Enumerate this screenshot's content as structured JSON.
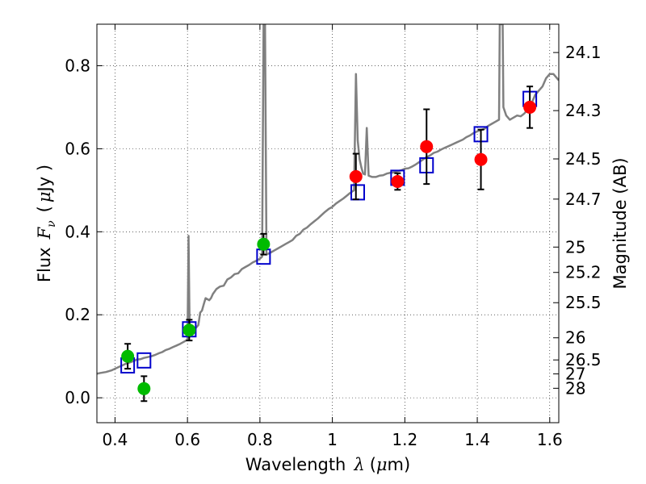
{
  "chart_data": {
    "type": "scatter",
    "xlabel": "Wavelength",
    "xlabel_symbol": "λ",
    "xlabel_unit_open": "(",
    "xlabel_unit_mu": "μ",
    "xlabel_unit_rest": "m)",
    "ylabel": "Flux",
    "ylabel_symbol": "F",
    "ylabel_sub": "ν",
    "ylabel_unit_open": "(",
    "ylabel_unit_mu": "μ",
    "ylabel_unit_rest": "Jy )",
    "y2label": "Magnitude (AB)",
    "xlim": [
      0.35,
      1.625
    ],
    "ylim": [
      -0.06,
      0.9
    ],
    "grid": true,
    "xticks": [
      {
        "v": 0.4,
        "label": "0.4"
      },
      {
        "v": 0.6,
        "label": "0.6"
      },
      {
        "v": 0.8,
        "label": "0.8"
      },
      {
        "v": 1.0,
        "label": "1"
      },
      {
        "v": 1.2,
        "label": "1.2"
      },
      {
        "v": 1.4,
        "label": "1.4"
      },
      {
        "v": 1.6,
        "label": "1.6"
      }
    ],
    "yticks": [
      {
        "v": 0.0,
        "label": "0.0"
      },
      {
        "v": 0.2,
        "label": "0.2"
      },
      {
        "v": 0.4,
        "label": "0.4"
      },
      {
        "v": 0.6,
        "label": "0.6"
      },
      {
        "v": 0.8,
        "label": "0.8"
      }
    ],
    "mag_ticks": [
      {
        "v": 24.1,
        "label": "24.1"
      },
      {
        "v": 24.3,
        "label": "24.3"
      },
      {
        "v": 24.5,
        "label": "24.5"
      },
      {
        "v": 24.7,
        "label": "24.7"
      },
      {
        "v": 25,
        "label": "25"
      },
      {
        "v": 25.2,
        "label": "25.2"
      },
      {
        "v": 25.5,
        "label": "25.5"
      },
      {
        "v": 26,
        "label": "26"
      },
      {
        "v": 26.5,
        "label": "26.5"
      },
      {
        "v": 27,
        "label": "27"
      },
      {
        "v": 28,
        "label": "28"
      }
    ],
    "series": [
      {
        "name": "model-spectrum",
        "kind": "line",
        "color": "#808080",
        "points": [
          [
            0.35,
            0.058
          ],
          [
            0.36,
            0.06
          ],
          [
            0.375,
            0.062
          ],
          [
            0.39,
            0.066
          ],
          [
            0.4,
            0.07
          ],
          [
            0.41,
            0.074
          ],
          [
            0.42,
            0.078
          ],
          [
            0.43,
            0.082
          ],
          [
            0.44,
            0.085
          ],
          [
            0.45,
            0.088
          ],
          [
            0.46,
            0.092
          ],
          [
            0.47,
            0.093
          ],
          [
            0.48,
            0.096
          ],
          [
            0.49,
            0.098
          ],
          [
            0.5,
            0.1
          ],
          [
            0.51,
            0.103
          ],
          [
            0.52,
            0.107
          ],
          [
            0.53,
            0.11
          ],
          [
            0.54,
            0.115
          ],
          [
            0.55,
            0.118
          ],
          [
            0.56,
            0.122
          ],
          [
            0.57,
            0.126
          ],
          [
            0.58,
            0.13
          ],
          [
            0.59,
            0.135
          ],
          [
            0.6,
            0.14
          ],
          [
            0.603,
            0.39
          ],
          [
            0.606,
            0.17
          ],
          [
            0.61,
            0.155
          ],
          [
            0.62,
            0.165
          ],
          [
            0.63,
            0.175
          ],
          [
            0.635,
            0.205
          ],
          [
            0.64,
            0.21
          ],
          [
            0.645,
            0.225
          ],
          [
            0.65,
            0.24
          ],
          [
            0.66,
            0.235
          ],
          [
            0.665,
            0.24
          ],
          [
            0.67,
            0.25
          ],
          [
            0.68,
            0.262
          ],
          [
            0.69,
            0.268
          ],
          [
            0.7,
            0.27
          ],
          [
            0.71,
            0.285
          ],
          [
            0.72,
            0.29
          ],
          [
            0.73,
            0.298
          ],
          [
            0.74,
            0.3
          ],
          [
            0.75,
            0.31
          ],
          [
            0.76,
            0.315
          ],
          [
            0.77,
            0.32
          ],
          [
            0.78,
            0.326
          ],
          [
            0.79,
            0.33
          ],
          [
            0.8,
            0.335
          ],
          [
            0.806,
            0.34
          ],
          [
            0.81,
            0.9
          ],
          [
            0.814,
            0.9
          ],
          [
            0.818,
            0.345
          ],
          [
            0.83,
            0.35
          ],
          [
            0.84,
            0.355
          ],
          [
            0.85,
            0.36
          ],
          [
            0.86,
            0.365
          ],
          [
            0.87,
            0.37
          ],
          [
            0.88,
            0.375
          ],
          [
            0.89,
            0.38
          ],
          [
            0.9,
            0.39
          ],
          [
            0.91,
            0.395
          ],
          [
            0.92,
            0.405
          ],
          [
            0.93,
            0.41
          ],
          [
            0.94,
            0.418
          ],
          [
            0.95,
            0.425
          ],
          [
            0.96,
            0.432
          ],
          [
            0.97,
            0.44
          ],
          [
            0.98,
            0.448
          ],
          [
            0.99,
            0.455
          ],
          [
            1.0,
            0.46
          ],
          [
            1.01,
            0.468
          ],
          [
            1.02,
            0.474
          ],
          [
            1.03,
            0.48
          ],
          [
            1.04,
            0.487
          ],
          [
            1.05,
            0.494
          ],
          [
            1.06,
            0.5
          ],
          [
            1.065,
            0.78
          ],
          [
            1.07,
            0.62
          ],
          [
            1.075,
            0.575
          ],
          [
            1.08,
            0.555
          ],
          [
            1.085,
            0.54
          ],
          [
            1.09,
            0.538
          ],
          [
            1.095,
            0.65
          ],
          [
            1.1,
            0.535
          ],
          [
            1.11,
            0.532
          ],
          [
            1.12,
            0.532
          ],
          [
            1.13,
            0.535
          ],
          [
            1.14,
            0.536
          ],
          [
            1.15,
            0.54
          ],
          [
            1.16,
            0.542
          ],
          [
            1.17,
            0.543
          ],
          [
            1.18,
            0.546
          ],
          [
            1.19,
            0.548
          ],
          [
            1.2,
            0.552
          ],
          [
            1.21,
            0.553
          ],
          [
            1.22,
            0.557
          ],
          [
            1.23,
            0.562
          ],
          [
            1.24,
            0.568
          ],
          [
            1.25,
            0.574
          ],
          [
            1.26,
            0.58
          ],
          [
            1.27,
            0.584
          ],
          [
            1.28,
            0.59
          ],
          [
            1.29,
            0.593
          ],
          [
            1.3,
            0.598
          ],
          [
            1.31,
            0.602
          ],
          [
            1.32,
            0.606
          ],
          [
            1.33,
            0.61
          ],
          [
            1.34,
            0.614
          ],
          [
            1.35,
            0.618
          ],
          [
            1.36,
            0.622
          ],
          [
            1.37,
            0.628
          ],
          [
            1.38,
            0.632
          ],
          [
            1.39,
            0.638
          ],
          [
            1.4,
            0.642
          ],
          [
            1.41,
            0.645
          ],
          [
            1.42,
            0.648
          ],
          [
            1.43,
            0.655
          ],
          [
            1.44,
            0.66
          ],
          [
            1.45,
            0.665
          ],
          [
            1.46,
            0.67
          ],
          [
            1.462,
            0.9
          ],
          [
            1.47,
            0.9
          ],
          [
            1.472,
            0.7
          ],
          [
            1.48,
            0.68
          ],
          [
            1.49,
            0.67
          ],
          [
            1.5,
            0.675
          ],
          [
            1.51,
            0.68
          ],
          [
            1.52,
            0.678
          ],
          [
            1.53,
            0.685
          ],
          [
            1.54,
            0.695
          ],
          [
            1.55,
            0.71
          ],
          [
            1.56,
            0.73
          ],
          [
            1.57,
            0.74
          ],
          [
            1.58,
            0.75
          ],
          [
            1.59,
            0.77
          ],
          [
            1.6,
            0.78
          ],
          [
            1.61,
            0.78
          ],
          [
            1.625,
            0.765
          ]
        ]
      },
      {
        "name": "model-fluxes",
        "kind": "open-square",
        "color": "#0000cc",
        "points": [
          [
            0.435,
            0.078
          ],
          [
            0.48,
            0.09
          ],
          [
            0.605,
            0.165
          ],
          [
            0.81,
            0.34
          ],
          [
            1.07,
            0.495
          ],
          [
            1.18,
            0.53
          ],
          [
            1.26,
            0.56
          ],
          [
            1.41,
            0.635
          ],
          [
            1.545,
            0.72
          ]
        ]
      },
      {
        "name": "optical-photometry",
        "kind": "filled-circle",
        "color": "#00bb00",
        "points": [
          {
            "x": 0.435,
            "y": 0.1,
            "err": 0.03
          },
          {
            "x": 0.48,
            "y": 0.022,
            "err": 0.03
          },
          {
            "x": 0.605,
            "y": 0.163,
            "err": 0.025
          },
          {
            "x": 0.81,
            "y": 0.37,
            "err": 0.025
          }
        ]
      },
      {
        "name": "nir-photometry",
        "kind": "filled-circle",
        "color": "#ff0000",
        "points": [
          {
            "x": 1.065,
            "y": 0.533,
            "err": 0.055
          },
          {
            "x": 1.18,
            "y": 0.521,
            "err": 0.02
          },
          {
            "x": 1.26,
            "y": 0.605,
            "err": 0.09
          },
          {
            "x": 1.41,
            "y": 0.574,
            "err": 0.072
          },
          {
            "x": 1.545,
            "y": 0.7,
            "err": 0.05
          }
        ]
      }
    ]
  }
}
